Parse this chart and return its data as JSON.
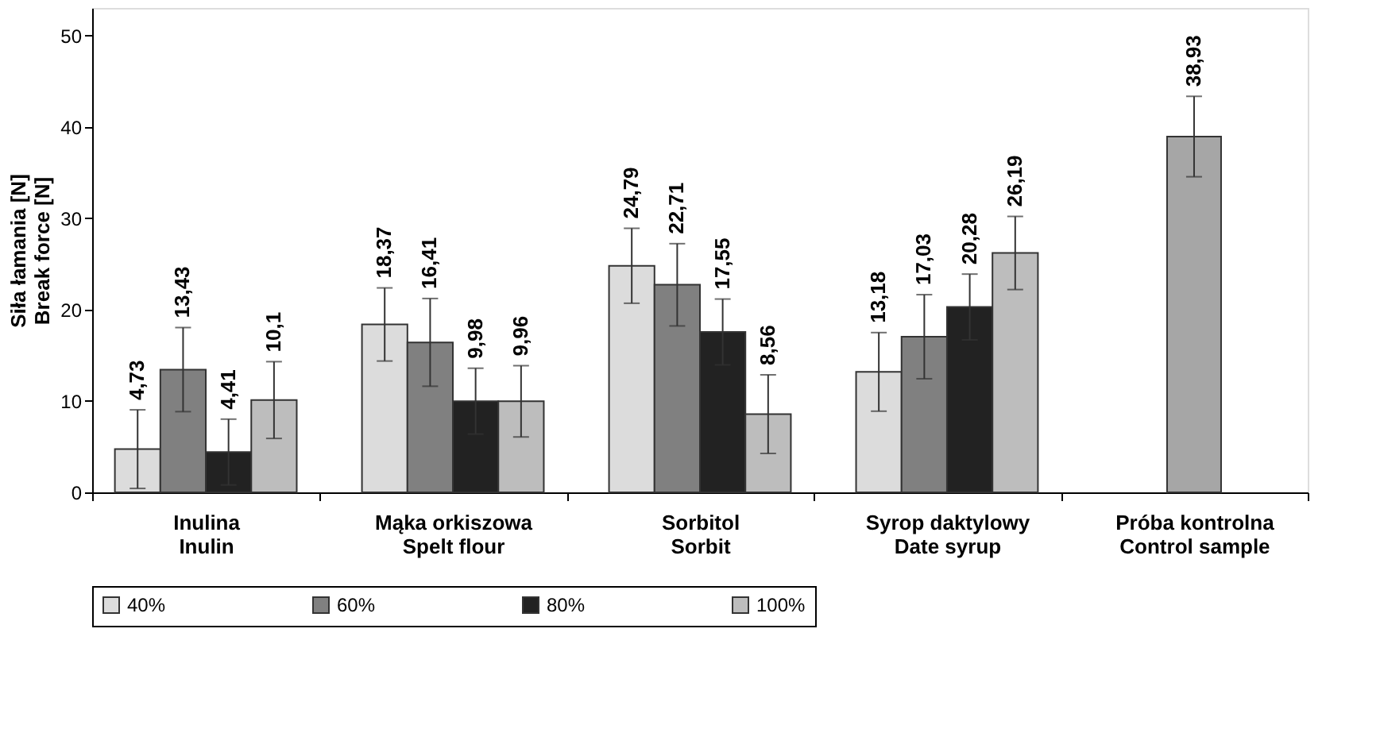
{
  "chart_data": {
    "type": "bar",
    "ylabel": "Siła łamania [N]\nBreak force [N]",
    "categories": [
      "Inulina\nInulin",
      "Mąka orkiszowa\nSpelt flour",
      "Sorbitol\nSorbit",
      "Syrop daktylowy\nDate syrup",
      "Próba kontrolna\nControl sample"
    ],
    "series": [
      {
        "name": "40%",
        "color": "#dcdcdc",
        "values": [
          4.73,
          18.37,
          24.79,
          13.18,
          null
        ],
        "errors": [
          4.3,
          4.0,
          4.1,
          4.3,
          null
        ],
        "value_labels": [
          "4,73",
          "18,37",
          "24,79",
          "13,18",
          null
        ]
      },
      {
        "name": "60%",
        "color": "#808080",
        "values": [
          13.43,
          16.41,
          22.71,
          17.03,
          null
        ],
        "errors": [
          4.6,
          4.8,
          4.5,
          4.6,
          null
        ],
        "value_labels": [
          "13,43",
          "16,41",
          "22,71",
          "17,03",
          null
        ]
      },
      {
        "name": "80%",
        "color": "#222222",
        "values": [
          4.41,
          9.98,
          17.55,
          20.28,
          null
        ],
        "errors": [
          3.6,
          3.6,
          3.6,
          3.6,
          null
        ],
        "value_labels": [
          "4,41",
          "9,98",
          "17,55",
          "20,28",
          null
        ]
      },
      {
        "name": "100%",
        "color": "#bdbdbd",
        "values": [
          10.1,
          9.96,
          8.56,
          26.19,
          null
        ],
        "errors": [
          4.2,
          3.9,
          4.3,
          4.0,
          null
        ],
        "value_labels": [
          "10,1",
          "9,96",
          "8,56",
          "26,19",
          null
        ]
      },
      {
        "color": "#a6a6a6",
        "values": [
          null,
          null,
          null,
          null,
          38.93
        ],
        "errors": [
          null,
          null,
          null,
          null,
          4.4
        ],
        "value_labels": [
          null,
          null,
          null,
          null,
          "38,93"
        ]
      }
    ],
    "ylim": [
      0,
      53
    ],
    "yticks": [
      0,
      10,
      20,
      30,
      40,
      50
    ],
    "grid": false,
    "legend": "bottom"
  }
}
